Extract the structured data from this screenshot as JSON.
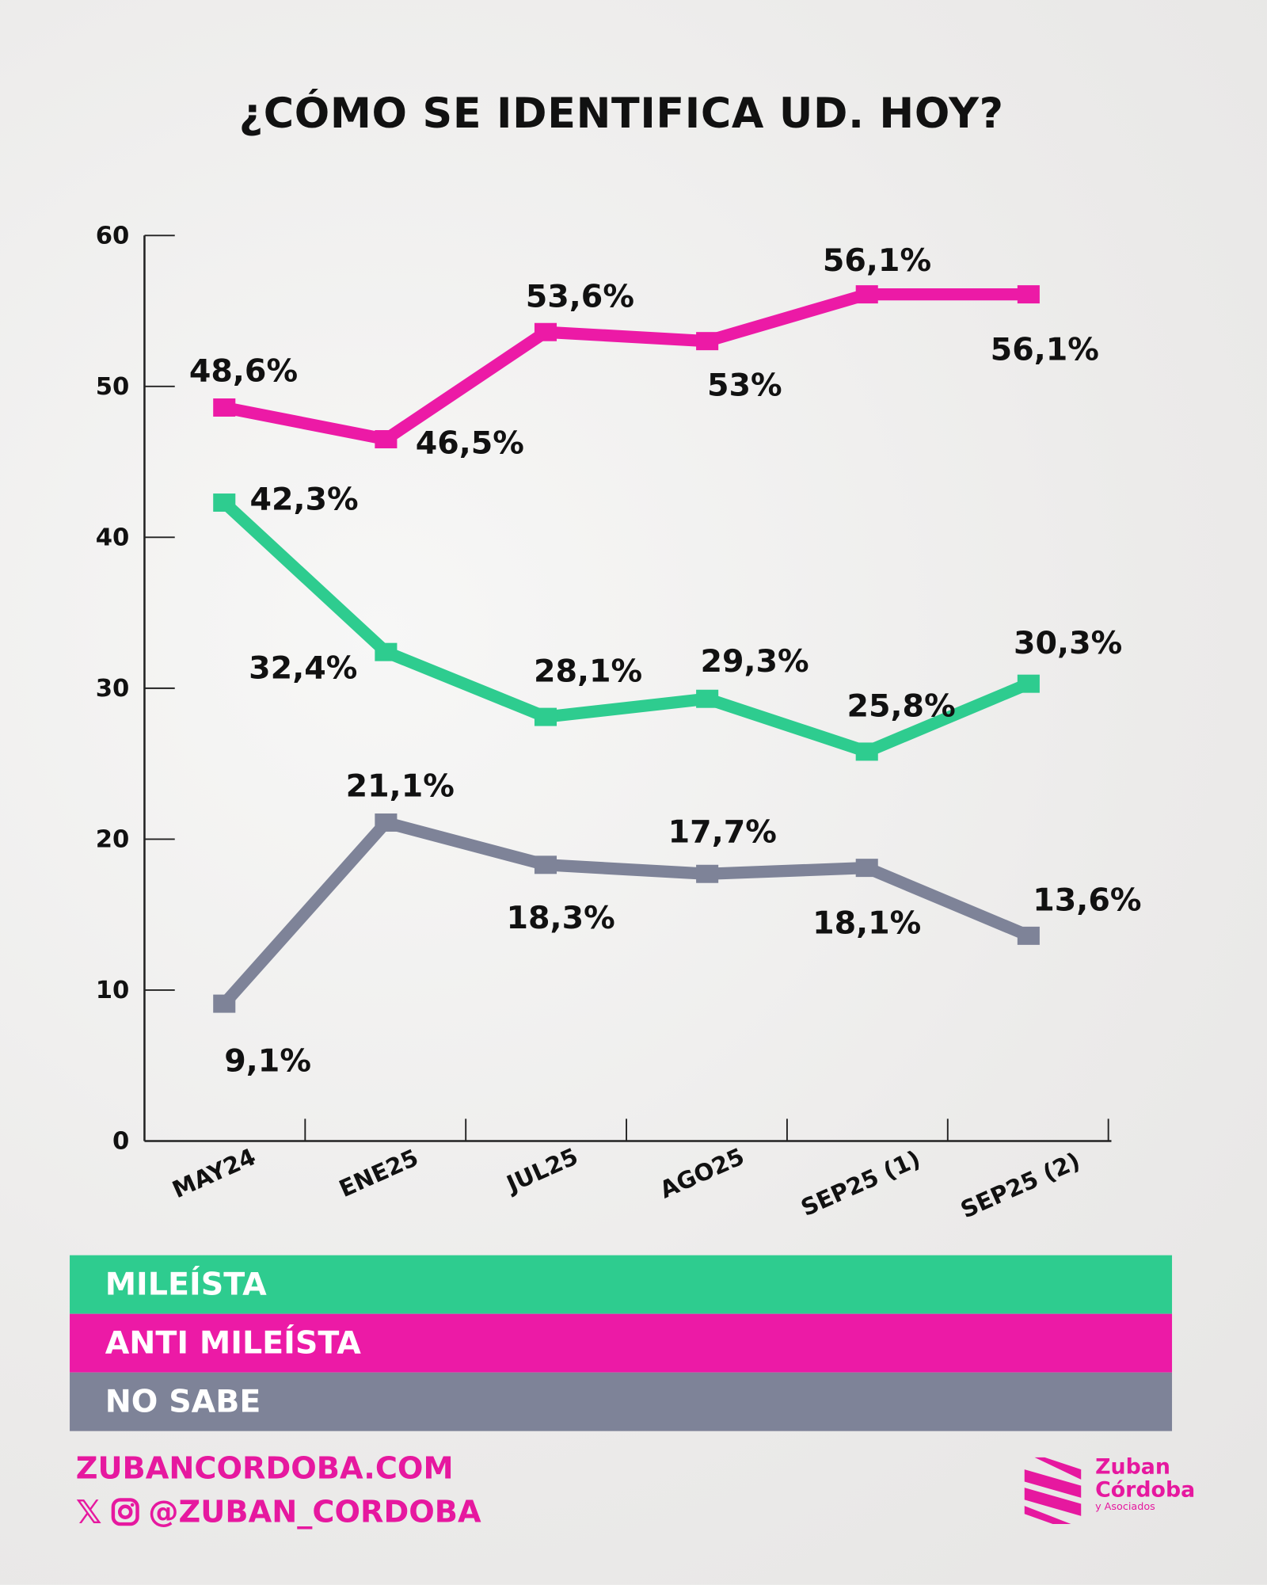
{
  "chart_data": {
    "type": "line",
    "title": "¿CÓMO SE IDENTIFICA UD. HOY?",
    "categories": [
      "MAY24",
      "ENE25",
      "JUL25",
      "AGO25",
      "SEP25 (1)",
      "SEP25 (2)"
    ],
    "ylim": [
      0,
      60
    ],
    "yticks": [
      "0",
      "10",
      "20",
      "30",
      "40",
      "50",
      "60"
    ],
    "grid": false,
    "legend_placement": "bottom",
    "series": [
      {
        "name": "ANTI MILEÍSTA",
        "color": "#ec1aa6",
        "values": [
          48.6,
          46.5,
          53.6,
          53,
          56.1,
          56.1
        ],
        "labels": [
          "48,6%",
          "46,5%",
          "53,6%",
          "53%",
          "56,1%",
          "56,1%"
        ]
      },
      {
        "name": "MILEÍSTA",
        "color": "#2ecc8f",
        "values": [
          42.3,
          32.4,
          28.1,
          29.3,
          25.8,
          30.3
        ],
        "labels": [
          "42,3%",
          "32,4%",
          "28,1%",
          "29,3%",
          "25,8%",
          "30,3%"
        ]
      },
      {
        "name": "NO SABE",
        "color": "#7e8398",
        "values": [
          9.1,
          21.1,
          18.3,
          17.7,
          18.1,
          13.6
        ],
        "labels": [
          "9,1%",
          "21,1%",
          "18,3%",
          "17,7%",
          "18,1%",
          "13,6%"
        ]
      }
    ]
  },
  "legend": [
    {
      "label": "MILEÍSTA",
      "color": "#2ecc8f"
    },
    {
      "label": "ANTI MILEÍSTA",
      "color": "#ec1aa6"
    },
    {
      "label": "NO SABE",
      "color": "#7e8398"
    }
  ],
  "footer": {
    "website": "ZUBANCORDOBA.COM",
    "handle": "@ZUBAN_CORDOBA",
    "icons": [
      "x-icon",
      "instagram-icon"
    ],
    "brand_color": "#e6189f"
  },
  "logo": {
    "line1": "Zuban",
    "line2": "Córdoba",
    "line3": "y Asociados"
  }
}
